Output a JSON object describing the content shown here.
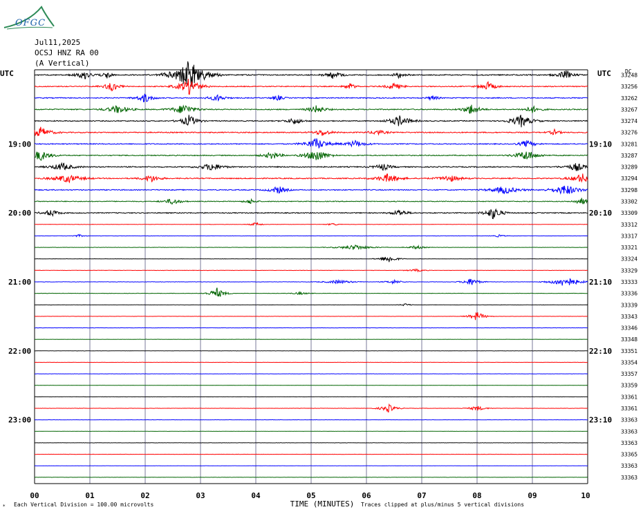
{
  "logo": {
    "text": "OFGC",
    "colors": {
      "swoosh": "#2e8b57",
      "text": "#1a5fa8"
    }
  },
  "header": {
    "date": "Jul11,2025",
    "station": "OCSJ HNZ RA 00",
    "component": "(A Vertical)"
  },
  "chart_data": {
    "type": "line",
    "title": "",
    "left_label": "UTC",
    "right_label": "UTC",
    "right_header": "DC",
    "xlabel": "TIME (MINUTES)",
    "x_ticks": [
      "00",
      "01",
      "02",
      "03",
      "04",
      "05",
      "06",
      "07",
      "08",
      "09",
      "10"
    ],
    "xlim": [
      0,
      10
    ],
    "left_hour_labels": [
      {
        "row": 6,
        "text": "19:00"
      },
      {
        "row": 12,
        "text": "20:00"
      },
      {
        "row": 18,
        "text": "21:00"
      },
      {
        "row": 24,
        "text": "22:00"
      },
      {
        "row": 30,
        "text": "23:00"
      }
    ],
    "right_hour_labels": [
      {
        "row": 6,
        "text": "19:10"
      },
      {
        "row": 12,
        "text": "20:10"
      },
      {
        "row": 18,
        "text": "21:10"
      },
      {
        "row": 24,
        "text": "22:10"
      },
      {
        "row": 30,
        "text": "23:10"
      }
    ],
    "trace_colors": [
      "#000000",
      "#ff0000",
      "#0000ff",
      "#006400"
    ],
    "dc_offsets": [
      "33248",
      "33256",
      "33262",
      "33267",
      "33274",
      "33276",
      "33281",
      "33287",
      "33289",
      "33294",
      "33298",
      "33302",
      "33309",
      "33312",
      "33317",
      "33321",
      "33324",
      "33329",
      "33333",
      "33336",
      "33339",
      "33343",
      "33346",
      "33348",
      "33351",
      "33354",
      "33357",
      "33359",
      "33361",
      "33361",
      "33363",
      "33363",
      "33363",
      "33365",
      "33363",
      "33363"
    ],
    "trace_activity": [
      {
        "row": 0,
        "noise": 0.45,
        "events": [
          [
            0.9,
            6,
            0.3
          ],
          [
            1.3,
            5,
            0.2
          ],
          [
            2.8,
            22,
            0.6
          ],
          [
            5.4,
            6,
            0.3
          ],
          [
            6.6,
            5,
            0.2
          ],
          [
            9.6,
            7,
            0.3
          ]
        ]
      },
      {
        "row": 1,
        "noise": 0.4,
        "events": [
          [
            1.4,
            6,
            0.3
          ],
          [
            2.8,
            12,
            0.4
          ],
          [
            5.7,
            5,
            0.2
          ],
          [
            6.5,
            5,
            0.3
          ],
          [
            8.2,
            6,
            0.3
          ]
        ]
      },
      {
        "row": 2,
        "noise": 0.4,
        "events": [
          [
            2.0,
            7,
            0.3
          ],
          [
            3.3,
            5,
            0.3
          ],
          [
            4.4,
            4,
            0.2
          ],
          [
            7.2,
            4,
            0.2
          ]
        ]
      },
      {
        "row": 3,
        "noise": 0.45,
        "events": [
          [
            1.5,
            6,
            0.4
          ],
          [
            2.7,
            8,
            0.4
          ],
          [
            5.1,
            6,
            0.3
          ],
          [
            7.9,
            8,
            0.3
          ],
          [
            9.0,
            5,
            0.3
          ]
        ]
      },
      {
        "row": 4,
        "noise": 0.4,
        "events": [
          [
            2.8,
            9,
            0.3
          ],
          [
            4.7,
            5,
            0.3
          ],
          [
            6.6,
            8,
            0.4
          ],
          [
            8.8,
            9,
            0.4
          ]
        ]
      },
      {
        "row": 5,
        "noise": 0.45,
        "events": [
          [
            0.1,
            8,
            0.4
          ],
          [
            5.2,
            5,
            0.3
          ],
          [
            6.2,
            4,
            0.3
          ],
          [
            9.4,
            4,
            0.2
          ]
        ]
      },
      {
        "row": 6,
        "noise": 0.4,
        "events": [
          [
            5.1,
            9,
            0.4
          ],
          [
            5.8,
            5,
            0.4
          ],
          [
            8.9,
            5,
            0.3
          ]
        ]
      },
      {
        "row": 7,
        "noise": 0.4,
        "events": [
          [
            0.1,
            8,
            0.4
          ],
          [
            4.3,
            6,
            0.3
          ],
          [
            5.1,
            10,
            0.4
          ],
          [
            8.9,
            8,
            0.4
          ]
        ]
      },
      {
        "row": 8,
        "noise": 0.45,
        "events": [
          [
            0.5,
            6,
            0.4
          ],
          [
            3.2,
            6,
            0.4
          ],
          [
            6.3,
            5,
            0.3
          ],
          [
            9.8,
            6,
            0.4
          ]
        ]
      },
      {
        "row": 9,
        "noise": 0.45,
        "events": [
          [
            0.6,
            6,
            0.5
          ],
          [
            2.1,
            6,
            0.3
          ],
          [
            6.4,
            7,
            0.4
          ],
          [
            7.5,
            5,
            0.4
          ],
          [
            9.9,
            7,
            0.4
          ]
        ]
      },
      {
        "row": 10,
        "noise": 0.4,
        "events": [
          [
            4.4,
            6,
            0.3
          ],
          [
            8.5,
            6,
            0.5
          ],
          [
            9.6,
            8,
            0.5
          ]
        ]
      },
      {
        "row": 11,
        "noise": 0.35,
        "events": [
          [
            2.5,
            5,
            0.3
          ],
          [
            3.9,
            4,
            0.2
          ],
          [
            9.9,
            5,
            0.3
          ]
        ]
      },
      {
        "row": 12,
        "noise": 0.4,
        "events": [
          [
            0.3,
            5,
            0.3
          ],
          [
            6.6,
            5,
            0.3
          ],
          [
            8.3,
            10,
            0.3
          ]
        ]
      },
      {
        "row": 13,
        "noise": 0.15,
        "events": [
          [
            4.0,
            3,
            0.2
          ],
          [
            5.4,
            2,
            0.2
          ]
        ]
      },
      {
        "row": 14,
        "noise": 0.12,
        "events": [
          [
            0.8,
            2,
            0.2
          ],
          [
            8.4,
            2,
            0.2
          ]
        ]
      },
      {
        "row": 15,
        "noise": 0.12,
        "events": [
          [
            5.8,
            4,
            0.6
          ],
          [
            6.9,
            3,
            0.3
          ]
        ]
      },
      {
        "row": 16,
        "noise": 0.12,
        "events": [
          [
            6.4,
            6,
            0.3
          ]
        ]
      },
      {
        "row": 17,
        "noise": 0.15,
        "events": [
          [
            6.9,
            2,
            0.3
          ]
        ]
      },
      {
        "row": 18,
        "noise": 0.15,
        "events": [
          [
            5.5,
            3,
            0.5
          ],
          [
            6.5,
            3,
            0.3
          ],
          [
            7.9,
            6,
            0.3
          ],
          [
            9.6,
            8,
            0.5
          ]
        ]
      },
      {
        "row": 19,
        "noise": 0.15,
        "events": [
          [
            3.3,
            8,
            0.3
          ],
          [
            4.8,
            2,
            0.3
          ]
        ]
      },
      {
        "row": 20,
        "noise": 0.12,
        "events": [
          [
            6.7,
            2,
            0.2
          ]
        ]
      },
      {
        "row": 21,
        "noise": 0.1,
        "events": [
          [
            8.0,
            7,
            0.3
          ]
        ]
      },
      {
        "row": 22,
        "noise": 0.1,
        "events": []
      },
      {
        "row": 23,
        "noise": 0.1,
        "events": []
      },
      {
        "row": 24,
        "noise": 0.1,
        "events": []
      },
      {
        "row": 25,
        "noise": 0.1,
        "events": []
      },
      {
        "row": 26,
        "noise": 0.1,
        "events": []
      },
      {
        "row": 27,
        "noise": 0.1,
        "events": []
      },
      {
        "row": 28,
        "noise": 0.1,
        "events": []
      },
      {
        "row": 29,
        "noise": 0.12,
        "events": [
          [
            6.4,
            6,
            0.3
          ],
          [
            8.0,
            4,
            0.3
          ]
        ]
      },
      {
        "row": 30,
        "noise": 0.1,
        "events": []
      },
      {
        "row": 31,
        "noise": 0.1,
        "events": []
      },
      {
        "row": 32,
        "noise": 0.1,
        "events": []
      },
      {
        "row": 33,
        "noise": 0.1,
        "events": []
      },
      {
        "row": 34,
        "noise": 0.1,
        "events": []
      },
      {
        "row": 35,
        "noise": 0.1,
        "events": []
      }
    ]
  },
  "footer": {
    "scale": "Each Vertical Division =  100.00 microvolts",
    "clip": "Traces clipped at plus/minus 5 vertical divisions",
    "corner": "*"
  }
}
